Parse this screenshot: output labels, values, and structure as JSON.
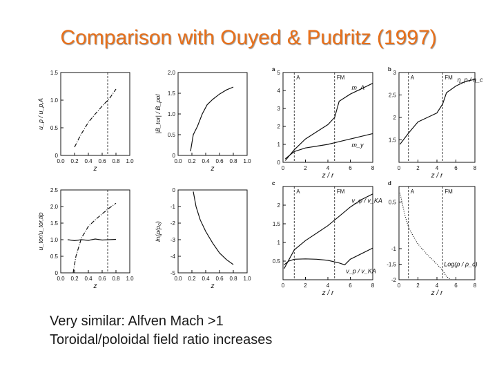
{
  "slide": {
    "title": "Comparison with Ouyed & Pudritz (1997)",
    "bullets": [
      "Very similar: Alfven Mach >1",
      "Toroidal/poloidal field ratio increases"
    ]
  },
  "colors": {
    "title": "#e8701a",
    "text": "#1a1a1a",
    "plot": "#111111"
  },
  "chart_data": [
    {
      "id": "left-top-1",
      "type": "line",
      "xlim": [
        0,
        1.0
      ],
      "ylim": [
        0,
        1.5
      ],
      "xticks": [
        "0.0",
        "0.2",
        "0.4",
        "0.6",
        "0.8",
        "1.0"
      ],
      "yticks": [
        "0",
        "0.5",
        "1.0",
        "1.5"
      ],
      "xlabel": "z",
      "ylabel": "u_p / u_p,A",
      "vline": [
        0.68
      ],
      "vline_style": "dashed",
      "series": [
        {
          "style": "dashdot",
          "points": [
            [
              0.2,
              0.15
            ],
            [
              0.28,
              0.35
            ],
            [
              0.4,
              0.6
            ],
            [
              0.5,
              0.75
            ],
            [
              0.62,
              0.92
            ],
            [
              0.7,
              1.02
            ],
            [
              0.8,
              1.2
            ]
          ]
        }
      ]
    },
    {
      "id": "left-top-2",
      "type": "line",
      "xlim": [
        0,
        1.0
      ],
      "ylim": [
        0,
        2.0
      ],
      "xticks": [
        "0.0",
        "0.2",
        "0.4",
        "0.6",
        "0.8",
        "1.0"
      ],
      "yticks": [
        "0",
        "0.5",
        "1.0",
        "1.5",
        "2.0"
      ],
      "xlabel": "z",
      "ylabel": "|B_tor| / B_pol",
      "series": [
        {
          "style": "solid",
          "points": [
            [
              0.18,
              0.1
            ],
            [
              0.22,
              0.5
            ],
            [
              0.28,
              0.7
            ],
            [
              0.35,
              1.0
            ],
            [
              0.42,
              1.22
            ],
            [
              0.5,
              1.35
            ],
            [
              0.6,
              1.48
            ],
            [
              0.7,
              1.58
            ],
            [
              0.8,
              1.65
            ]
          ]
        }
      ]
    },
    {
      "id": "left-bottom-1",
      "type": "line",
      "xlim": [
        0,
        1.0
      ],
      "ylim": [
        0,
        2.5
      ],
      "xticks": [
        "0.0",
        "0.2",
        "0.4",
        "0.6",
        "0.8",
        "1.0"
      ],
      "yticks": [
        "0",
        "0.5",
        "1.0",
        "1.5",
        "2.0",
        "2.5"
      ],
      "xlabel": "z",
      "ylabel": "u_tor/u_tor,tip",
      "vline": [
        0.68
      ],
      "vline_style": "dashed",
      "series": [
        {
          "style": "dashdot",
          "points": [
            [
              0.18,
              0.0
            ],
            [
              0.22,
              0.5
            ],
            [
              0.3,
              1.05
            ],
            [
              0.4,
              1.4
            ],
            [
              0.5,
              1.6
            ],
            [
              0.6,
              1.78
            ],
            [
              0.7,
              1.95
            ],
            [
              0.8,
              2.1
            ]
          ]
        },
        {
          "style": "solid",
          "points": [
            [
              0.1,
              1.0
            ],
            [
              0.2,
              0.97
            ],
            [
              0.3,
              1.0
            ],
            [
              0.4,
              0.98
            ],
            [
              0.5,
              1.02
            ],
            [
              0.6,
              0.99
            ],
            [
              0.7,
              1.0
            ],
            [
              0.8,
              1.01
            ]
          ]
        }
      ]
    },
    {
      "id": "left-bottom-2",
      "type": "line",
      "xlim": [
        0,
        1.0
      ],
      "ylim": [
        -5,
        0
      ],
      "xticks": [
        "0.0",
        "0.2",
        "0.4",
        "0.6",
        "0.8",
        "1.0"
      ],
      "yticks": [
        "0",
        "-1",
        "-2",
        "-3",
        "-4",
        "-5"
      ],
      "xlabel": "z",
      "ylabel": "ln(ρ/ρ₀)",
      "series": [
        {
          "style": "solid",
          "points": [
            [
              0.22,
              -0.1
            ],
            [
              0.26,
              -1.0
            ],
            [
              0.32,
              -1.8
            ],
            [
              0.4,
              -2.5
            ],
            [
              0.5,
              -3.2
            ],
            [
              0.6,
              -3.8
            ],
            [
              0.7,
              -4.2
            ],
            [
              0.8,
              -4.5
            ]
          ]
        }
      ]
    },
    {
      "id": "right-top-a",
      "panel_label": "a",
      "type": "line",
      "xlim": [
        0,
        8
      ],
      "ylim": [
        0,
        5
      ],
      "xticks": [
        "0",
        "2",
        "4",
        "6",
        "8"
      ],
      "yticks": [
        "0",
        "1",
        "2",
        "3",
        "4",
        "5"
      ],
      "xlabel": "z / r",
      "vline_labels": [
        "A",
        "FM"
      ],
      "vline": [
        1.0,
        4.6
      ],
      "series": [
        {
          "name": "m_A",
          "style": "solid",
          "points": [
            [
              0.2,
              0.1
            ],
            [
              1,
              0.7
            ],
            [
              2,
              1.3
            ],
            [
              3,
              1.7
            ],
            [
              4,
              2.1
            ],
            [
              4.6,
              2.5
            ],
            [
              5,
              3.4
            ],
            [
              6,
              3.8
            ],
            [
              7,
              4.1
            ],
            [
              8,
              4.4
            ]
          ]
        },
        {
          "name": "m_y",
          "style": "solid",
          "points": [
            [
              0.2,
              0.2
            ],
            [
              1,
              0.6
            ],
            [
              2,
              0.8
            ],
            [
              3,
              0.9
            ],
            [
              4,
              1.0
            ],
            [
              5,
              1.15
            ],
            [
              6,
              1.3
            ],
            [
              7,
              1.45
            ],
            [
              8,
              1.6
            ]
          ]
        }
      ]
    },
    {
      "id": "right-top-b",
      "panel_label": "b",
      "type": "line",
      "xlim": [
        0,
        8
      ],
      "ylim": [
        1,
        3
      ],
      "xticks": [
        "0",
        "2",
        "4",
        "6",
        "8"
      ],
      "yticks": [
        "1.5",
        "2",
        "2.5",
        "3"
      ],
      "xlabel": "z / r",
      "vline_labels": [
        "A",
        "FM"
      ],
      "vline": [
        1.0,
        4.6
      ],
      "series": [
        {
          "name": "η_p / η_c",
          "style": "solid",
          "points": [
            [
              0.1,
              1.4
            ],
            [
              1,
              1.65
            ],
            [
              2,
              1.9
            ],
            [
              3,
              2.0
            ],
            [
              4,
              2.1
            ],
            [
              4.6,
              2.3
            ],
            [
              5,
              2.55
            ],
            [
              6,
              2.7
            ],
            [
              7,
              2.8
            ],
            [
              8,
              2.85
            ]
          ]
        }
      ]
    },
    {
      "id": "right-bottom-c",
      "panel_label": "c",
      "type": "line",
      "xlim": [
        0,
        8
      ],
      "ylim": [
        0,
        2.5
      ],
      "xticks": [
        "0",
        "2",
        "4",
        "6",
        "8"
      ],
      "yticks": [
        "0.5",
        "1",
        "1.5",
        "2"
      ],
      "xlabel": "z / r",
      "vline_labels": [
        "A",
        "FM"
      ],
      "vline": [
        1.0,
        4.6
      ],
      "series": [
        {
          "name": "v_φ / v_KA",
          "style": "solid",
          "points": [
            [
              0.1,
              0.3
            ],
            [
              1,
              0.8
            ],
            [
              2,
              1.05
            ],
            [
              3,
              1.25
            ],
            [
              4,
              1.45
            ],
            [
              5,
              1.7
            ],
            [
              6,
              1.95
            ],
            [
              7,
              2.15
            ],
            [
              8,
              2.3
            ]
          ]
        },
        {
          "name": "v_p / v_KA",
          "style": "solid",
          "points": [
            [
              0.1,
              0.4
            ],
            [
              0.5,
              0.5
            ],
            [
              1,
              0.55
            ],
            [
              2,
              0.56
            ],
            [
              3,
              0.55
            ],
            [
              4,
              0.52
            ],
            [
              5,
              0.45
            ],
            [
              5.5,
              0.4
            ],
            [
              6,
              0.55
            ],
            [
              7,
              0.7
            ],
            [
              8,
              0.85
            ]
          ]
        }
      ]
    },
    {
      "id": "right-bottom-d",
      "panel_label": "d",
      "type": "line",
      "xlim": [
        0,
        8
      ],
      "ylim": [
        -2,
        1
      ],
      "xticks": [
        "0",
        "2",
        "4",
        "6",
        "8"
      ],
      "yticks": [
        "0.5",
        "-1",
        "-1.5",
        "-2"
      ],
      "xlabel": "z / r",
      "vline_labels": [
        "A",
        "FM"
      ],
      "vline": [
        1.0,
        4.6
      ],
      "series": [
        {
          "name": "Log(ρ / ρ_c)",
          "style": "dotted",
          "points": [
            [
              0.1,
              0.8
            ],
            [
              0.6,
              0.1
            ],
            [
              1,
              -0.3
            ],
            [
              1.5,
              -0.6
            ],
            [
              2,
              -0.85
            ],
            [
              3,
              -1.2
            ],
            [
              4,
              -1.5
            ],
            [
              4.6,
              -1.7
            ],
            [
              5,
              -1.9
            ],
            [
              5.5,
              -2.0
            ]
          ]
        }
      ]
    }
  ]
}
